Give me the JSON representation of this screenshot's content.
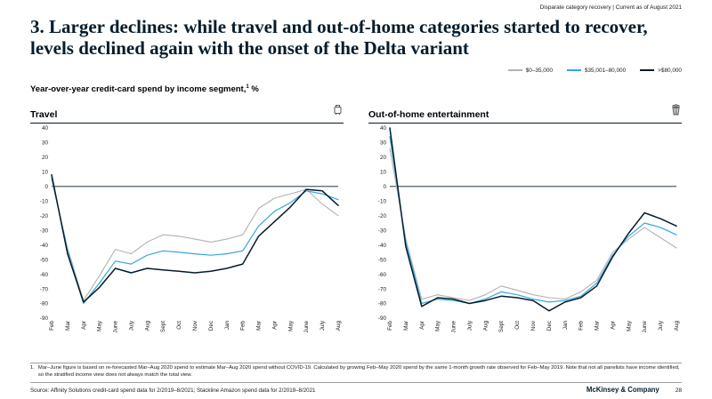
{
  "tagline": "Disparate category recovery | Current as of August 2021",
  "title": "3. Larger declines: while travel and out-of-home categories started to recover, levels declined again with the onset of the Delta variant",
  "legend": {
    "items": [
      {
        "label": "$0–35,000",
        "color": "#b2b2b2",
        "thickness": 1.5
      },
      {
        "label": "$35,001–80,000",
        "color": "#35a7e0",
        "thickness": 1.5
      },
      {
        "label": ">$80,000",
        "color": "#051c2c",
        "thickness": 2
      }
    ]
  },
  "subtitle": {
    "text": "Year-over-year credit-card spend by income segment,",
    "sup": "1",
    "unit": " %"
  },
  "chart_data": [
    {
      "type": "line",
      "title": "Travel",
      "icon": "suitcase-icon",
      "x": [
        "Feb",
        "Mar",
        "Apr",
        "May",
        "June",
        "July",
        "Aug",
        "Sept",
        "Oct",
        "Nov",
        "Dec",
        "Jan",
        "Feb",
        "Mar",
        "Apr",
        "May",
        "June",
        "July",
        "Aug"
      ],
      "ylim": [
        -90,
        40
      ],
      "yticks": [
        40,
        30,
        20,
        10,
        0,
        -10,
        -20,
        -30,
        -40,
        -50,
        -60,
        -70,
        -80,
        -90
      ],
      "series": [
        {
          "name": "$0–35,000",
          "color": "#b2b2b2",
          "width": 1.1,
          "values": [
            5,
            -42,
            -78,
            -61,
            -43,
            -46,
            -38,
            -33,
            -34,
            -36,
            -38,
            -36,
            -33,
            -15,
            -8,
            -5,
            -2,
            -12,
            -20
          ]
        },
        {
          "name": "$35,001–80,000",
          "color": "#35a7e0",
          "width": 1.2,
          "values": [
            6,
            -44,
            -80,
            -66,
            -51,
            -53,
            -47,
            -44,
            -45,
            -46,
            -47,
            -46,
            -44,
            -27,
            -17,
            -11,
            -3,
            -5,
            -9
          ]
        },
        {
          "name": ">$80,000",
          "color": "#051c2c",
          "width": 1.5,
          "values": [
            8,
            -46,
            -79,
            -69,
            -56,
            -59,
            -56,
            -57,
            -58,
            -59,
            -58,
            -56,
            -53,
            -34,
            -24,
            -14,
            -2,
            -3,
            -13
          ]
        }
      ]
    },
    {
      "type": "line",
      "title": "Out-of-home entertainment",
      "icon": "popcorn-icon",
      "x": [
        "Feb",
        "Mar",
        "Apr",
        "May",
        "June",
        "July",
        "Aug",
        "Sept",
        "Oct",
        "Nov",
        "Dec",
        "Jan",
        "Feb",
        "Mar",
        "Apr",
        "May",
        "June",
        "July",
        "Aug"
      ],
      "ylim": [
        -90,
        40
      ],
      "yticks": [
        40,
        30,
        20,
        10,
        0,
        -10,
        -20,
        -30,
        -40,
        -50,
        -60,
        -70,
        -80,
        -90
      ],
      "series": [
        {
          "name": "$0–35,000",
          "color": "#b2b2b2",
          "width": 1.1,
          "values": [
            26,
            -36,
            -77,
            -74,
            -76,
            -78,
            -74,
            -68,
            -71,
            -74,
            -76,
            -77,
            -72,
            -64,
            -45,
            -36,
            -28,
            -35,
            -42
          ]
        },
        {
          "name": "$35,001–80,000",
          "color": "#35a7e0",
          "width": 1.2,
          "values": [
            34,
            -38,
            -80,
            -77,
            -78,
            -80,
            -77,
            -72,
            -74,
            -77,
            -79,
            -78,
            -75,
            -66,
            -47,
            -34,
            -25,
            -28,
            -33
          ]
        },
        {
          "name": ">$80,000",
          "color": "#051c2c",
          "width": 1.5,
          "values": [
            40,
            -41,
            -82,
            -76,
            -77,
            -80,
            -78,
            -75,
            -76,
            -78,
            -85,
            -79,
            -76,
            -68,
            -48,
            -32,
            -18,
            -22,
            -27
          ]
        }
      ]
    }
  ],
  "footnote": {
    "number": "1.",
    "text": "Mar–June figure is based on re-forecasted Mar–Aug 2020 spend to estimate Mar–Aug 2020 spend without COVID-19. Calculated by growing Feb–May 2020 spend by the same 1-month growth rate observed for Feb–May 2019. Note that not all panelists have income identified, so the stratified income view does not always match the total view."
  },
  "source": "Source: Affinity Solutions credit-card spend data for 2/2019–8/2021; Stackline Amazon spend data for 2/2019–8/2021",
  "footer": {
    "brand": "McKinsey & Company",
    "page": "28"
  }
}
